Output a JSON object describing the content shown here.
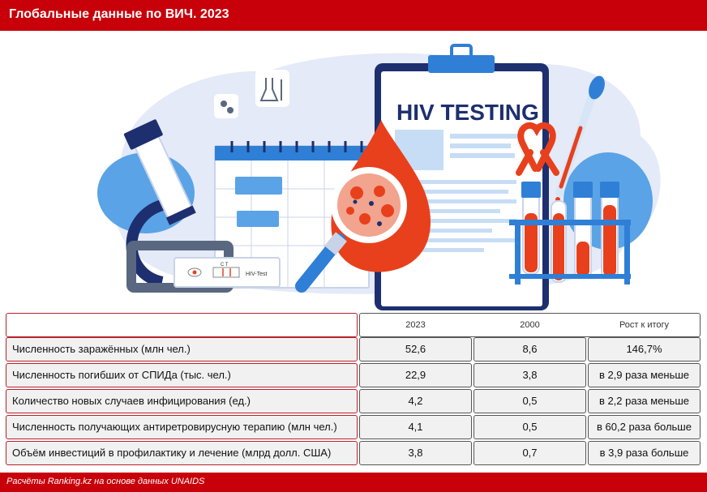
{
  "header": {
    "title": "Глобальные данные по ВИЧ. 2023"
  },
  "illustration": {
    "board_title": "HIV TESTING",
    "test_label": "HIV-Test",
    "test_marks": "C  T",
    "colors": {
      "blob": "#e4eaf8",
      "accent_blue": "#2f7fd6",
      "navy": "#1d2f6f",
      "red": "#e8401c"
    }
  },
  "table": {
    "columns": [
      "2023",
      "2000",
      "Рост к итогу"
    ],
    "rows": [
      {
        "label": "Численность заражённых (млн чел.)",
        "v2023": "52,6",
        "v2000": "8,6",
        "growth": "146,7%"
      },
      {
        "label": "Численность погибших от СПИДа (тыс. чел.)",
        "v2023": "22,9",
        "v2000": "3,8",
        "growth": "в 2,9 раза меньше"
      },
      {
        "label": "Количество новых случаев инфицирования (ед.)",
        "v2023": "4,2",
        "v2000": "0,5",
        "growth": "в 2,2 раза меньше"
      },
      {
        "label": "Численность получающих антиретровирусную терапию (млн чел.)",
        "v2023": "4,1",
        "v2000": "0,5",
        "growth": "в 60,2 раза больше"
      },
      {
        "label": "Объём инвестиций в профилактику и лечение (млрд долл. США)",
        "v2023": "3,8",
        "v2000": "0,7",
        "growth": "в 3,9 раза больше"
      }
    ]
  },
  "footer": {
    "source": "Расчёты Ranking.kz на основе данных UNAIDS"
  },
  "colors": {
    "header_bg": "#c8000a",
    "row_bg": "#f1f1f1",
    "label_border": "#b8202a"
  }
}
